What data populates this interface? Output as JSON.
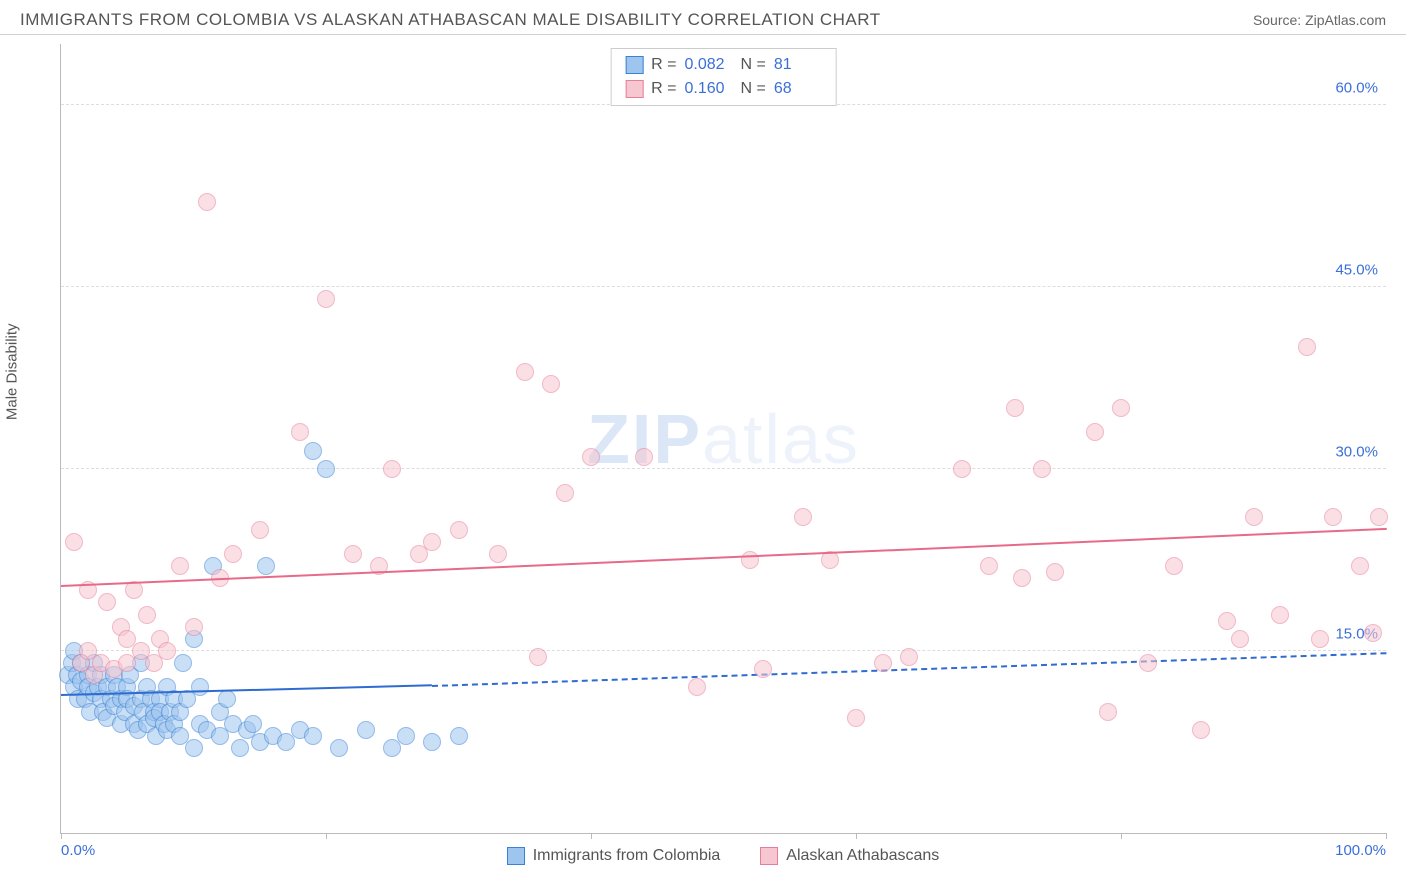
{
  "header": {
    "title": "IMMIGRANTS FROM COLOMBIA VS ALASKAN ATHABASCAN MALE DISABILITY CORRELATION CHART",
    "source_prefix": "Source: ",
    "source_name": "ZipAtlas.com"
  },
  "chart": {
    "type": "scatter",
    "ylabel": "Male Disability",
    "background_color": "#ffffff",
    "grid_color": "#dddddd",
    "axis_color": "#bbbbbb",
    "tick_label_color": "#3b6fd8",
    "xlim": [
      0,
      100
    ],
    "ylim": [
      0,
      65
    ],
    "y_ticks": [
      {
        "value": 15,
        "label": "15.0%"
      },
      {
        "value": 30,
        "label": "30.0%"
      },
      {
        "value": 45,
        "label": "45.0%"
      },
      {
        "value": 60,
        "label": "60.0%"
      }
    ],
    "x_tick_marks": [
      0,
      20,
      40,
      60,
      80,
      100
    ],
    "x_labels": [
      {
        "value": 0,
        "label": "0.0%",
        "align": "left"
      },
      {
        "value": 100,
        "label": "100.0%",
        "align": "right"
      }
    ],
    "marker_radius": 9,
    "marker_opacity": 0.55,
    "watermark": "ZIPatlas",
    "series": [
      {
        "name": "Immigrants from Colombia",
        "fill_color": "#9ec5ee",
        "stroke_color": "#3b82d6",
        "line_color": "#2f6bd0",
        "R": "0.082",
        "N": "81",
        "trend": {
          "x1": 0,
          "y1": 11.5,
          "x2": 28,
          "y2": 12.3,
          "solid": true,
          "ext_x2": 100,
          "ext_y2": 15.0
        },
        "points": [
          [
            0.5,
            13
          ],
          [
            0.8,
            14
          ],
          [
            1.0,
            12
          ],
          [
            1.0,
            15
          ],
          [
            1.2,
            13
          ],
          [
            1.3,
            11
          ],
          [
            1.5,
            12.5
          ],
          [
            1.5,
            14
          ],
          [
            1.8,
            11
          ],
          [
            2.0,
            13
          ],
          [
            2.0,
            12
          ],
          [
            2.2,
            10
          ],
          [
            2.5,
            11.5
          ],
          [
            2.5,
            14
          ],
          [
            2.8,
            12
          ],
          [
            3.0,
            13
          ],
          [
            3.0,
            11
          ],
          [
            3.2,
            10
          ],
          [
            3.5,
            9.5
          ],
          [
            3.5,
            12
          ],
          [
            3.8,
            11
          ],
          [
            4.0,
            10.5
          ],
          [
            4.0,
            13
          ],
          [
            4.2,
            12
          ],
          [
            4.5,
            11
          ],
          [
            4.5,
            9
          ],
          [
            4.8,
            10
          ],
          [
            5.0,
            12
          ],
          [
            5.0,
            11
          ],
          [
            5.2,
            13
          ],
          [
            5.5,
            9
          ],
          [
            5.5,
            10.5
          ],
          [
            5.8,
            8.5
          ],
          [
            6.0,
            11
          ],
          [
            6.0,
            14
          ],
          [
            6.2,
            10
          ],
          [
            6.5,
            9
          ],
          [
            6.5,
            12
          ],
          [
            6.8,
            11
          ],
          [
            7.0,
            10
          ],
          [
            7.0,
            9.5
          ],
          [
            7.2,
            8
          ],
          [
            7.5,
            11
          ],
          [
            7.5,
            10
          ],
          [
            7.8,
            9
          ],
          [
            8.0,
            12
          ],
          [
            8.0,
            8.5
          ],
          [
            8.2,
            10
          ],
          [
            8.5,
            11
          ],
          [
            8.5,
            9
          ],
          [
            9.0,
            10
          ],
          [
            9.0,
            8
          ],
          [
            9.2,
            14
          ],
          [
            9.5,
            11
          ],
          [
            10.0,
            16
          ],
          [
            10.0,
            7
          ],
          [
            10.5,
            9
          ],
          [
            10.5,
            12
          ],
          [
            11.0,
            8.5
          ],
          [
            11.5,
            22
          ],
          [
            12.0,
            10
          ],
          [
            12.0,
            8
          ],
          [
            12.5,
            11
          ],
          [
            13.0,
            9
          ],
          [
            13.5,
            7
          ],
          [
            14.0,
            8.5
          ],
          [
            14.5,
            9
          ],
          [
            15.0,
            7.5
          ],
          [
            15.5,
            22
          ],
          [
            16.0,
            8
          ],
          [
            17.0,
            7.5
          ],
          [
            18.0,
            8.5
          ],
          [
            19.0,
            31.5
          ],
          [
            19.0,
            8
          ],
          [
            20.0,
            30
          ],
          [
            21.0,
            7
          ],
          [
            23.0,
            8.5
          ],
          [
            25.0,
            7
          ],
          [
            26.0,
            8
          ],
          [
            28.0,
            7.5
          ],
          [
            30.0,
            8
          ]
        ]
      },
      {
        "name": "Alaskan Athabascans",
        "fill_color": "#f6c6d1",
        "stroke_color": "#e77f9a",
        "line_color": "#e86a8a",
        "R": "0.160",
        "N": "68",
        "trend": {
          "x1": 0,
          "y1": 20.5,
          "x2": 100,
          "y2": 25.2,
          "solid": true
        },
        "points": [
          [
            1.0,
            24
          ],
          [
            1.5,
            14
          ],
          [
            2.0,
            15
          ],
          [
            2.0,
            20
          ],
          [
            2.5,
            13
          ],
          [
            3.0,
            14
          ],
          [
            3.5,
            19
          ],
          [
            4.0,
            13.5
          ],
          [
            4.5,
            17
          ],
          [
            5.0,
            16
          ],
          [
            5.0,
            14
          ],
          [
            5.5,
            20
          ],
          [
            6.0,
            15
          ],
          [
            6.5,
            18
          ],
          [
            7.0,
            14
          ],
          [
            7.5,
            16
          ],
          [
            8.0,
            15
          ],
          [
            9.0,
            22
          ],
          [
            10.0,
            17
          ],
          [
            11.0,
            52
          ],
          [
            12.0,
            21
          ],
          [
            13.0,
            23
          ],
          [
            15.0,
            25
          ],
          [
            18.0,
            33
          ],
          [
            20.0,
            44
          ],
          [
            22.0,
            23
          ],
          [
            24.0,
            22
          ],
          [
            25.0,
            30
          ],
          [
            27.0,
            23
          ],
          [
            28.0,
            24
          ],
          [
            30.0,
            25
          ],
          [
            33.0,
            23
          ],
          [
            35.0,
            38
          ],
          [
            36.0,
            14.5
          ],
          [
            37.0,
            37
          ],
          [
            38.0,
            28
          ],
          [
            40.0,
            31
          ],
          [
            44.0,
            31
          ],
          [
            48.0,
            12
          ],
          [
            52.0,
            22.5
          ],
          [
            53.0,
            13.5
          ],
          [
            56.0,
            26
          ],
          [
            58.0,
            22.5
          ],
          [
            60.0,
            9.5
          ],
          [
            62.0,
            14
          ],
          [
            64.0,
            14.5
          ],
          [
            68.0,
            30
          ],
          [
            70.0,
            22
          ],
          [
            72.0,
            35
          ],
          [
            72.5,
            21
          ],
          [
            74.0,
            30
          ],
          [
            75.0,
            21.5
          ],
          [
            78.0,
            33
          ],
          [
            79.0,
            10
          ],
          [
            80.0,
            35
          ],
          [
            82.0,
            14
          ],
          [
            84.0,
            22
          ],
          [
            86.0,
            8.5
          ],
          [
            88.0,
            17.5
          ],
          [
            89.0,
            16
          ],
          [
            90.0,
            26
          ],
          [
            92.0,
            18
          ],
          [
            94.0,
            40
          ],
          [
            95.0,
            16
          ],
          [
            96.0,
            26
          ],
          [
            98.0,
            22
          ],
          [
            99.0,
            16.5
          ],
          [
            99.5,
            26
          ]
        ]
      }
    ],
    "top_legend": {
      "columns": [
        "R",
        "N"
      ]
    },
    "bottom_legend": true
  }
}
